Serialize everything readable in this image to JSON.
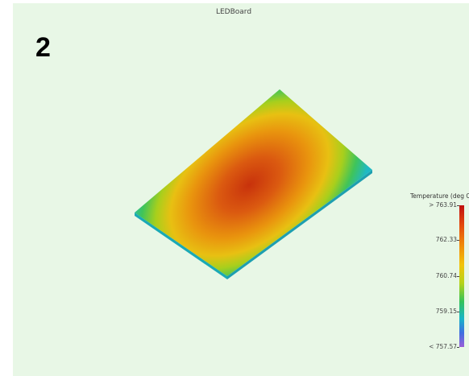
{
  "view": {
    "title": "LEDBoard",
    "step_number": "2"
  },
  "legend": {
    "title": "Temperature (deg C)",
    "ticks": [
      "> 763.91",
      "762.33",
      "760.74",
      "759.15",
      "< 757.57"
    ],
    "max": 763.91,
    "min": 757.57,
    "colors": {
      "hot": "#c01010",
      "warm": "#f08a0a",
      "mid": "#f2c40a",
      "cool": "#33c25a",
      "cold": "#18b5c7",
      "coldest": "#9a5fd8"
    }
  },
  "colors": {
    "background": "#e8f7e6"
  }
}
